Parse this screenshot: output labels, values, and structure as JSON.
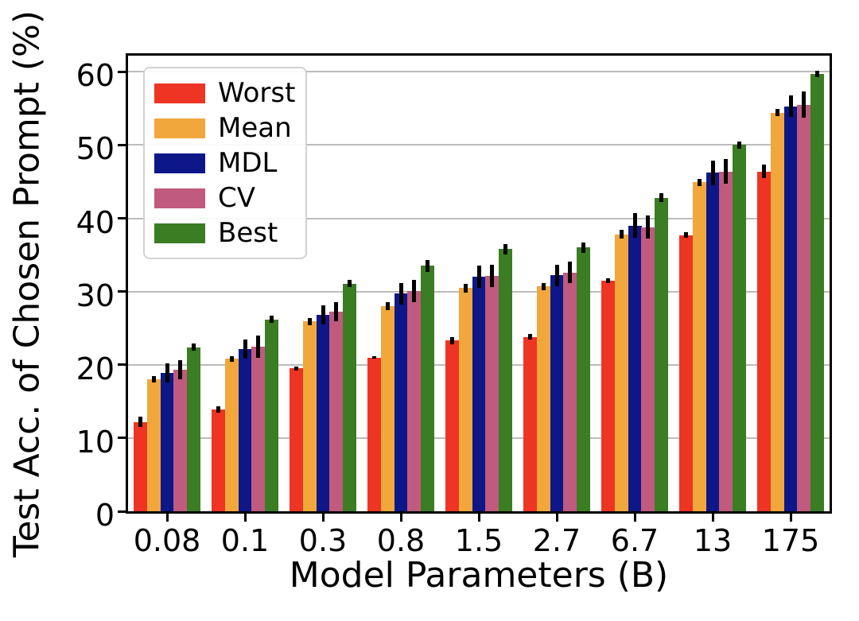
{
  "chart_data": {
    "type": "bar",
    "title": "",
    "xlabel": "Model Parameters (B)",
    "ylabel": "Test Acc. of Chosen Prompt (%)",
    "categories": [
      "0.08",
      "0.1",
      "0.3",
      "0.8",
      "1.5",
      "2.7",
      "6.7",
      "13",
      "175"
    ],
    "series": [
      {
        "name": "Worst",
        "color": "#ee3423",
        "values": [
          12.2,
          13.9,
          19.5,
          21.0,
          23.3,
          23.8,
          31.5,
          37.7,
          46.4
        ],
        "errors": [
          0.7,
          0.4,
          0.3,
          0.2,
          0.5,
          0.4,
          0.3,
          0.4,
          0.9
        ]
      },
      {
        "name": "Mean",
        "color": "#f1a73c",
        "values": [
          18.0,
          20.8,
          25.9,
          28.0,
          30.5,
          30.7,
          37.8,
          44.9,
          54.4
        ],
        "errors": [
          0.4,
          0.4,
          0.5,
          0.5,
          0.6,
          0.5,
          0.6,
          0.5,
          0.5
        ]
      },
      {
        "name": "MDL",
        "color": "#0d1787",
        "values": [
          18.9,
          22.1,
          26.8,
          29.7,
          32.0,
          32.2,
          39.0,
          46.2,
          55.3
        ],
        "errors": [
          1.3,
          1.3,
          1.3,
          1.5,
          1.5,
          1.5,
          1.7,
          1.7,
          1.5
        ]
      },
      {
        "name": "CV",
        "color": "#c05a7e",
        "values": [
          19.3,
          22.5,
          27.2,
          30.1,
          32.1,
          32.6,
          38.8,
          46.4,
          55.5
        ],
        "errors": [
          1.3,
          1.5,
          1.3,
          1.5,
          1.5,
          1.5,
          1.6,
          1.7,
          1.8
        ]
      },
      {
        "name": "Best",
        "color": "#3b7d22",
        "values": [
          22.4,
          26.2,
          31.1,
          33.5,
          35.8,
          36.0,
          42.8,
          50.0,
          59.7
        ],
        "errors": [
          0.5,
          0.5,
          0.5,
          0.8,
          0.7,
          0.7,
          0.6,
          0.5,
          0.4
        ]
      }
    ],
    "ylim": [
      0,
      62.2
    ],
    "yticks": [
      0,
      10,
      20,
      30,
      40,
      50,
      60
    ],
    "grid": "horizontal",
    "grid_color": "#bcbcbc",
    "axis_color": "#000000",
    "error_bar_color": "#000000",
    "background": "#ffffff",
    "legend_position": "upper-left",
    "bar_width_fraction": 0.17
  }
}
